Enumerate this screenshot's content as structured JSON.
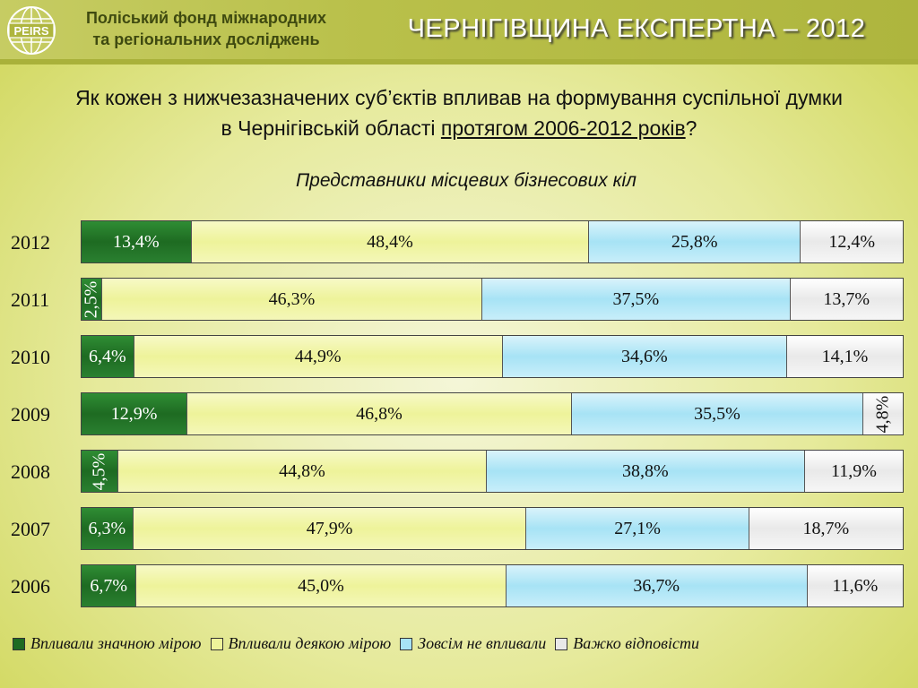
{
  "header": {
    "logo_text": "PEIRS",
    "org_line1": "Поліський фонд міжнародних",
    "org_line2": "та регіональних досліджень",
    "project_title": "ЧЕРНІГІВЩИНА ЕКСПЕРТНА – 2012"
  },
  "question": {
    "line1": "Як кожен з нижчезазначених суб’єктів впливав на формування суспільної думки",
    "line2_prefix": "в Чернігівській області ",
    "line2_underlined": "протягом 2006-2012 років",
    "line2_suffix": "?"
  },
  "colors": {
    "series0": "#1e6b22",
    "series1": "#eef39a",
    "series2": "#a7e3f5",
    "series3": "#e9e9e9"
  },
  "chart_data": {
    "type": "bar",
    "orientation": "horizontal",
    "stacked": true,
    "title": "Представники місцевих бізнесових кіл",
    "categories": [
      "2012",
      "2011",
      "2010",
      "2009",
      "2008",
      "2007",
      "2006"
    ],
    "series": [
      {
        "name": "Впливали значною мірою",
        "values": [
          13.4,
          2.5,
          6.4,
          12.9,
          4.5,
          6.3,
          6.7
        ],
        "labels": [
          "13,4%",
          "2,5%",
          "6,4%",
          "12,9%",
          "4,5%",
          "6,3%",
          "6,7%"
        ]
      },
      {
        "name": "Впливали деякою мірою",
        "values": [
          48.4,
          46.3,
          44.9,
          46.8,
          44.8,
          47.9,
          45.0
        ],
        "labels": [
          "48,4%",
          "46,3%",
          "44,9%",
          "46,8%",
          "44,8%",
          "47,9%",
          "45,0%"
        ]
      },
      {
        "name": "Зовсім не впливали",
        "values": [
          25.8,
          37.5,
          34.6,
          35.5,
          38.8,
          27.1,
          36.7
        ],
        "labels": [
          "25,8%",
          "37,5%",
          "34,6%",
          "35,5%",
          "38,8%",
          "27,1%",
          "36,7%"
        ]
      },
      {
        "name": "Важко відповісти",
        "values": [
          12.4,
          13.7,
          14.1,
          4.8,
          11.9,
          18.7,
          11.6
        ],
        "labels": [
          "12,4%",
          "13,7%",
          "14,1%",
          "4,8%",
          "11,9%",
          "18,7%",
          "11,6%"
        ]
      }
    ],
    "legend_position": "bottom"
  }
}
